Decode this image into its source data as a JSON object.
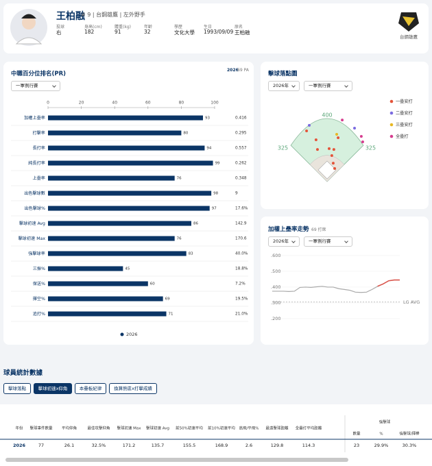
{
  "player": {
    "name": "王柏融",
    "number": "# 9",
    "team": "台鋼雄鷹",
    "position": "左外野手",
    "fields": [
      {
        "label": "投球",
        "value": "右"
      },
      {
        "label": "身高(cm)",
        "value": "182"
      },
      {
        "label": "體重(kg)",
        "value": "91"
      },
      {
        "label": "年齡",
        "value": "32"
      },
      {
        "label": "學歷",
        "value": "文化大學"
      },
      {
        "label": "生日",
        "value": "1993/09/09"
      },
      {
        "label": "原名",
        "value": "王柏融"
      }
    ]
  },
  "chart_data": [
    {
      "type": "bar",
      "orientation": "horizontal",
      "title": "中職百分位排名(PR)",
      "season": "2026",
      "pa": "69 PA",
      "filter": "一軍例行賽",
      "categories": [
        "加權上壘率",
        "打擊率",
        "長打率",
        "純長打率",
        "上壘率",
        "出色擊球數",
        "出色擊球%",
        "擊球初速 Avg",
        "擊球初速 Max",
        "強擊球率",
        "三振%",
        "保送%",
        "揮空%",
        "追打%"
      ],
      "series": [
        {
          "name": "2026",
          "color": "#0b3566",
          "values": [
            93,
            80,
            94,
            99,
            76,
            98,
            97,
            86,
            76,
            83,
            45,
            60,
            69,
            71
          ]
        }
      ],
      "stat_values": [
        "0.416",
        "0.295",
        "0.557",
        "0.262",
        "0.348",
        "9",
        "17.6%",
        "142.9",
        "170.6",
        "40.0%",
        "18.8%",
        "7.2%",
        "19.5%",
        "21.0%"
      ],
      "xlim": [
        0,
        100
      ],
      "xticks": [
        0,
        20,
        40,
        60,
        80,
        100
      ]
    },
    {
      "type": "scatter",
      "title": "擊球落點圖",
      "filters": [
        "2026年",
        "一軍例行賽"
      ],
      "field_distances": {
        "left": 325,
        "center": 400,
        "right": 325
      },
      "series": [
        {
          "name": "一壘安打",
          "color": "#e4543a",
          "x": [
            -130,
            -70,
            -61,
            13,
            43,
            30,
            39,
            48,
            70
          ],
          "y": [
            322,
            265,
            204,
            209,
            204,
            165,
            117,
            83,
            278
          ]
        },
        {
          "name": "二壘安打",
          "color": "#7b6be0",
          "x": [
            -113,
            174
          ],
          "y": [
            357,
            339
          ]
        },
        {
          "name": "三壘安打",
          "color": "#e8b824",
          "x": [
            61
          ],
          "y": [
            300
          ]
        },
        {
          "name": "全壘打",
          "color": "#d63d8f",
          "x": [
            96,
            217,
            226
          ],
          "y": [
            391,
            287,
            252
          ]
        }
      ]
    },
    {
      "type": "line",
      "title": "加權上壘率走勢",
      "subtitle": "69 打席",
      "filters": [
        "2026年",
        "一軍例行賽"
      ],
      "ylim": [
        0.15,
        0.63
      ],
      "yticks": [
        {
          "value": 0.6,
          "label": ".600"
        },
        {
          "value": 0.5,
          "label": ".500"
        },
        {
          "value": 0.4,
          "label": ".400"
        },
        {
          "value": 0.3,
          "label": ".300"
        },
        {
          "value": 0.2,
          "label": ".200"
        }
      ],
      "reference": {
        "label": "LG AVG",
        "value": 0.305
      },
      "series": [
        {
          "color": "#a9a9a9",
          "values": [
            0.374,
            0.374,
            0.374,
            0.372,
            0.374,
            0.398,
            0.4,
            0.398,
            0.402,
            0.405,
            0.4,
            0.4,
            0.39,
            0.385,
            0.38,
            0.368,
            0.366,
            0.368,
            0.385,
            0.405,
            0.42,
            null,
            null,
            null
          ]
        },
        {
          "color": "#d9534a",
          "values": [
            null,
            null,
            null,
            null,
            null,
            null,
            null,
            null,
            null,
            null,
            null,
            null,
            null,
            null,
            null,
            null,
            null,
            null,
            null,
            0.405,
            0.42,
            0.44,
            0.445,
            0.445
          ]
        }
      ]
    }
  ],
  "table": {
    "title": "球員統計數據",
    "tabs": [
      "擊球落點",
      "擊球初速x仰角",
      "本壘板紀律",
      "換算熱區x打擊成績"
    ],
    "active_tab": 1,
    "columns": [
      "年份",
      "擊球事件數量",
      "平均仰角",
      "最佳攻擊仰角",
      "擊球初速 Max",
      "擊球初速 Avg",
      "前50%初速平均",
      "前10%初速平均",
      "高飛/平飛%",
      "最遠擊球距離",
      "全壘打平均距離"
    ],
    "group": {
      "label": "強擊球",
      "columns": [
        "數量",
        "%",
        "強擊球/揮棒"
      ]
    },
    "rows": [
      [
        "2026",
        "77",
        "26.1",
        "32.5%",
        "171.2",
        "135.7",
        "155.5",
        "168.9",
        "2.6",
        "129.8",
        "114.3",
        "23",
        "29.9%",
        "30.3%"
      ]
    ]
  }
}
